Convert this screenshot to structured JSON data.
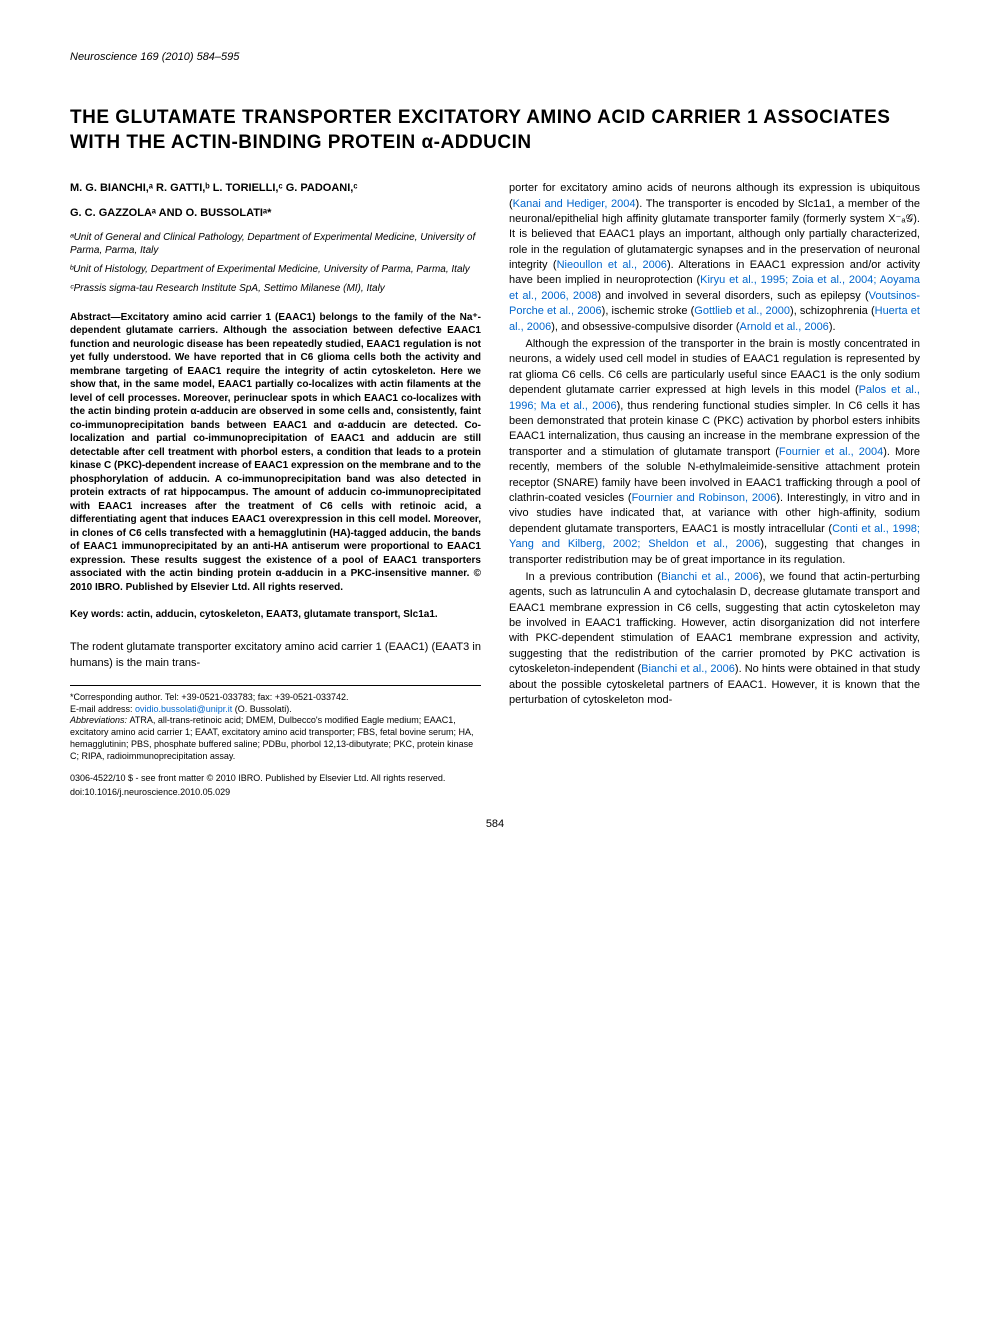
{
  "journal": "Neuroscience 169 (2010) 584–595",
  "title": "THE GLUTAMATE TRANSPORTER EXCITATORY AMINO ACID CARRIER 1 ASSOCIATES WITH THE ACTIN-BINDING PROTEIN α-ADDUCIN",
  "authors_line1": "M. G. BIANCHI,ᵃ R. GATTI,ᵇ L. TORIELLI,ᶜ G. PADOANI,ᶜ",
  "authors_line2": "G. C. GAZZOLAᵃ AND O. BUSSOLATIᵃ*",
  "affiliations": [
    "ᵃUnit of General and Clinical Pathology, Department of Experimental Medicine, University of Parma, Parma, Italy",
    "ᵇUnit of Histology, Department of Experimental Medicine, University of Parma, Parma, Italy",
    "ᶜPrassis sigma-tau Research Institute SpA, Settimo Milanese (MI), Italy"
  ],
  "abstract": "Abstract—Excitatory amino acid carrier 1 (EAAC1) belongs to the family of the Na⁺-dependent glutamate carriers. Although the association between defective EAAC1 function and neurologic disease has been repeatedly studied, EAAC1 regulation is not yet fully understood. We have reported that in C6 glioma cells both the activity and membrane targeting of EAAC1 require the integrity of actin cytoskeleton. Here we show that, in the same model, EAAC1 partially co-localizes with actin filaments at the level of cell processes. Moreover, perinuclear spots in which EAAC1 co-localizes with the actin binding protein α-adducin are observed in some cells and, consistently, faint co-immunoprecipitation bands between EAAC1 and α-adducin are detected. Co-localization and partial co-immunoprecipitation of EAAC1 and adducin are still detectable after cell treatment with phorbol esters, a condition that leads to a protein kinase C (PKC)-dependent increase of EAAC1 expression on the membrane and to the phosphorylation of adducin. A co-immunoprecipitation band was also detected in protein extracts of rat hippocampus. The amount of adducin co-immunoprecipitated with EAAC1 increases after the treatment of C6 cells with retinoic acid, a differentiating agent that induces EAAC1 overexpression in this cell model. Moreover, in clones of C6 cells transfected with a hemagglutinin (HA)-tagged adducin, the bands of EAAC1 immunoprecipitated by an anti-HA antiserum were proportional to EAAC1 expression. These results suggest the existence of a pool of EAAC1 transporters associated with the actin binding protein α-adducin in a PKC-insensitive manner. © 2010 IBRO. Published by Elsevier Ltd. All rights reserved.",
  "keywords": "Key words: actin, adducin, cytoskeleton, EAAT3, glutamate transport, Slc1a1.",
  "intro_para": "The rodent glutamate transporter excitatory amino acid carrier 1 (EAAC1) (EAAT3 in humans) is the main trans-",
  "col2_para1a": "porter for excitatory amino acids of neurons although its expression is ubiquitous (",
  "col2_ref1": "Kanai and Hediger, 2004",
  "col2_para1b": "). The transporter is encoded by Slc1a1, a member of the neuronal/epithelial high affinity glutamate transporter family (formerly system X⁻ₐ𝒢). It is believed that EAAC1 plays an important, although only partially characterized, role in the regulation of glutamatergic synapses and in the preservation of neuronal integrity (",
  "col2_ref2": "Nieoullon et al., 2006",
  "col2_para1c": "). Alterations in EAAC1 expression and/or activity have been implied in neuroprotection (",
  "col2_ref3": "Kiryu et al., 1995; Zoia et al., 2004; Aoyama et al., 2006, 2008",
  "col2_para1d": ") and involved in several disorders, such as epilepsy (",
  "col2_ref4": "Voutsinos-Porche et al., 2006",
  "col2_para1e": "), ischemic stroke (",
  "col2_ref5": "Gottlieb et al., 2000",
  "col2_para1f": "), schizophrenia (",
  "col2_ref6": "Huerta et al., 2006",
  "col2_para1g": "), and obsessive-compulsive disorder (",
  "col2_ref7": "Arnold et al., 2006",
  "col2_para1h": ").",
  "col2_para2a": "Although the expression of the transporter in the brain is mostly concentrated in neurons, a widely used cell model in studies of EAAC1 regulation is represented by rat glioma C6 cells. C6 cells are particularly useful since EAAC1 is the only sodium dependent glutamate carrier expressed at high levels in this model (",
  "col2_ref8": "Palos et al., 1996; Ma et al., 2006",
  "col2_para2b": "), thus rendering functional studies simpler. In C6 cells it has been demonstrated that protein kinase C (PKC) activation by phorbol esters inhibits EAAC1 internalization, thus causing an increase in the membrane expression of the transporter and a stimulation of glutamate transport (",
  "col2_ref9": "Fournier et al., 2004",
  "col2_para2c": "). More recently, members of the soluble N-ethylmaleimide-sensitive attachment protein receptor (SNARE) family have been involved in EAAC1 trafficking through a pool of clathrin-coated vesicles (",
  "col2_ref10": "Fournier and Robinson, 2006",
  "col2_para2d": "). Interestingly, in vitro and in vivo studies have indicated that, at variance with other high-affinity, sodium dependent glutamate transporters, EAAC1 is mostly intracellular (",
  "col2_ref11": "Conti et al., 1998; Yang and Kilberg, 2002; Sheldon et al., 2006",
  "col2_para2e": "), suggesting that changes in transporter redistribution may be of great importance in its regulation.",
  "col2_para3a": "In a previous contribution (",
  "col2_ref12": "Bianchi et al., 2006",
  "col2_para3b": "), we found that actin-perturbing agents, such as latrunculin A and cytochalasin D, decrease glutamate transport and EAAC1 membrane expression in C6 cells, suggesting that actin cytoskeleton may be involved in EAAC1 trafficking. However, actin disorganization did not interfere with PKC-dependent stimulation of EAAC1 membrane expression and activity, suggesting that the redistribution of the carrier promoted by PKC activation is cytoskeleton-independent (",
  "col2_ref13": "Bianchi et al., 2006",
  "col2_para3c": "). No hints were obtained in that study about the possible cytoskeletal partners of EAAC1. However, it is known that the perturbation of cytoskeleton mod-",
  "footnote_corr": "*Corresponding author. Tel: +39-0521-033783; fax: +39-0521-033742.",
  "footnote_email_label": "E-mail address: ",
  "footnote_email": "ovidio.bussolati@unipr.it",
  "footnote_email_suffix": " (O. Bussolati).",
  "footnote_abbrev_label": "Abbreviations: ",
  "footnote_abbrev": "ATRA, all-trans-retinoic acid; DMEM, Dulbecco's modified Eagle medium; EAAC1, excitatory amino acid carrier 1; EAAT, excitatory amino acid transporter; FBS, fetal bovine serum; HA, hemagglutinin; PBS, phosphate buffered saline; PDBu, phorbol 12,13-dibutyrate; PKC, protein kinase C; RIPA, radioimmunoprecipitation assay.",
  "copyright": "0306-4522/10 $ - see front matter © 2010 IBRO. Published by Elsevier Ltd. All rights reserved.",
  "doi": "doi:10.1016/j.neuroscience.2010.05.029",
  "page_num": "584"
}
